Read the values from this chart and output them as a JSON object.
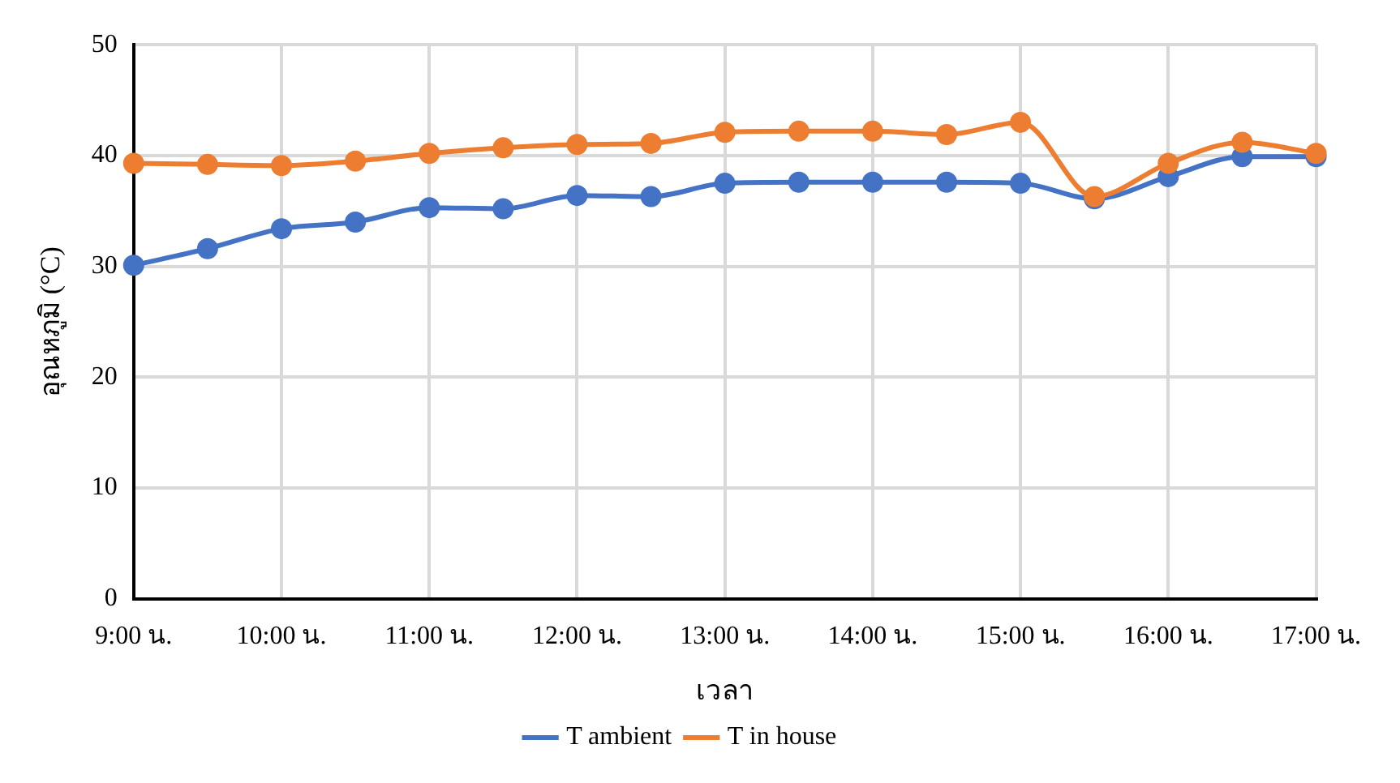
{
  "chart_data": {
    "type": "line",
    "xlabel": "เวลา",
    "ylabel": "อุณหภูมิ (°C)",
    "categories": [
      "9:00 น.",
      null,
      "10:00 น.",
      null,
      "11:00 น.",
      null,
      "12:00 น.",
      null,
      "13:00 น.",
      null,
      "14:00 น.",
      null,
      "15:00 น.",
      null,
      "16:00 น.",
      null,
      "17:00 น."
    ],
    "series": [
      {
        "name": "T ambient",
        "color": "#4472c4",
        "values": [
          30.1,
          31.6,
          33.4,
          34.0,
          35.3,
          35.2,
          36.4,
          36.3,
          37.5,
          37.6,
          37.6,
          37.6,
          37.5,
          36.1,
          38.1,
          39.9,
          39.9
        ]
      },
      {
        "name": "T in house",
        "color": "#ed7d31",
        "values": [
          39.3,
          39.2,
          39.1,
          39.5,
          40.2,
          40.7,
          41.0,
          41.1,
          42.1,
          42.2,
          42.2,
          41.9,
          43.0,
          36.3,
          39.3,
          41.2,
          40.2
        ]
      }
    ],
    "ylim": [
      0,
      50
    ],
    "yticks": [
      0,
      10,
      20,
      30,
      40,
      50
    ],
    "grid": true,
    "legend": "bottom",
    "marker": "circle",
    "line_style": "solid"
  }
}
